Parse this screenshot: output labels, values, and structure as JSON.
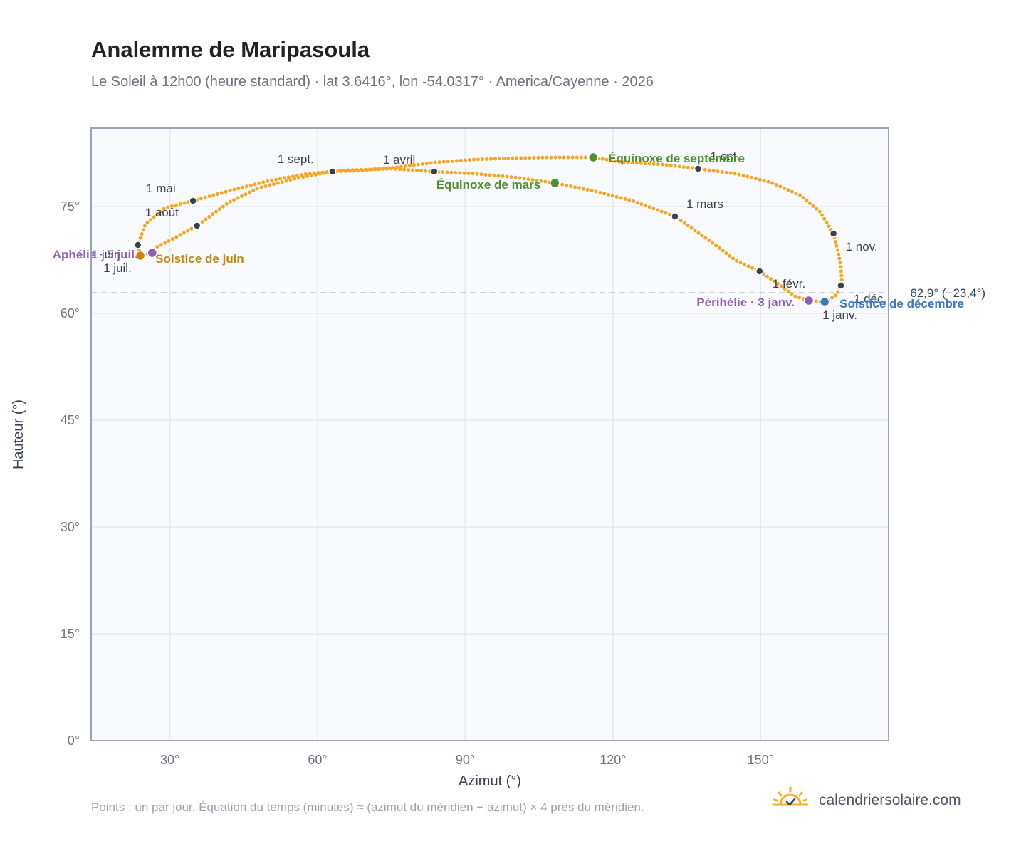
{
  "title": "Analemme de Maripasoula",
  "subtitle": "Le Soleil à 12h00 (heure standard) · lat 3.6416°, lon -54.0317° · America/Cayenne · 2026",
  "footnote": "Points : un par jour. Équation du temps (minutes) ≈ (azimut du méridien − azimut) × 4 près du méridien.",
  "brand": {
    "name": "calendriersolaire.com",
    "icon": "sun-check-icon"
  },
  "colors": {
    "curve": "#f5a623",
    "month_point": "#374151",
    "equinox": "#4f8f2f",
    "solstice_june": "#c8860d",
    "solstice_december": "#3a78c2",
    "apsis": "#8e5fb5",
    "reference_line": "#c0c6cf",
    "plot_bg": "#f8fafd",
    "plot_border": "#9aa5b5",
    "grid": "#e5e9ef"
  },
  "chart_data": {
    "type": "scatter",
    "xlabel": "Azimut (°)",
    "ylabel": "Hauteur (°)",
    "xlim": [
      14,
      176
    ],
    "ylim": [
      0,
      86
    ],
    "xticks": [
      30,
      60,
      90,
      120,
      150
    ],
    "xtick_labels": [
      "30°",
      "60°",
      "90°",
      "120°",
      "150°"
    ],
    "yticks": [
      0,
      15,
      30,
      45,
      60,
      75
    ],
    "ytick_labels": [
      "0°",
      "15°",
      "30°",
      "45°",
      "60°",
      "75°"
    ],
    "grid": true,
    "reference_line": {
      "y": 62.9,
      "label": "62,9° (−23,4°)"
    },
    "path": [
      [
        163.0,
        61.6
      ],
      [
        165.5,
        62.6
      ],
      [
        166.5,
        64.5
      ],
      [
        166.3,
        66.5
      ],
      [
        165.8,
        68.5
      ],
      [
        164.8,
        71.2
      ],
      [
        162.0,
        74.3
      ],
      [
        158.0,
        76.6
      ],
      [
        152.0,
        78.4
      ],
      [
        145.0,
        79.6
      ],
      [
        137.3,
        80.3
      ],
      [
        130.0,
        80.9
      ],
      [
        122.0,
        81.2
      ],
      [
        116.0,
        81.9
      ],
      [
        108.0,
        81.9
      ],
      [
        100.0,
        81.8
      ],
      [
        92.0,
        81.6
      ],
      [
        84.0,
        81.2
      ],
      [
        76.0,
        80.5
      ],
      [
        68.0,
        80.0
      ],
      [
        63.0,
        79.9
      ],
      [
        56.0,
        79.0
      ],
      [
        48.0,
        77.6
      ],
      [
        42.0,
        75.6
      ],
      [
        35.5,
        72.3
      ],
      [
        31.0,
        70.6
      ],
      [
        27.0,
        69.2
      ],
      [
        26.4,
        68.5
      ],
      [
        24.0,
        68.1
      ],
      [
        23.5,
        69.6
      ],
      [
        25.0,
        72.5
      ],
      [
        29.0,
        74.8
      ],
      [
        34.7,
        75.8
      ],
      [
        42.0,
        77.2
      ],
      [
        50.0,
        78.6
      ],
      [
        58.0,
        79.6
      ],
      [
        66.0,
        80.1
      ],
      [
        75.0,
        80.3
      ],
      [
        83.7,
        79.9
      ],
      [
        92.0,
        79.6
      ],
      [
        100.0,
        79.1
      ],
      [
        108.2,
        78.3
      ],
      [
        116.0,
        77.2
      ],
      [
        124.0,
        75.8
      ],
      [
        132.6,
        73.6
      ],
      [
        140.0,
        70.0
      ],
      [
        145.0,
        67.4
      ],
      [
        149.8,
        65.9
      ],
      [
        154.0,
        63.9
      ],
      [
        157.0,
        62.4
      ],
      [
        159.8,
        61.8
      ],
      [
        163.0,
        61.6
      ]
    ],
    "month_points": [
      {
        "label": "1 janv.",
        "x": 163.0,
        "y": 61.6
      },
      {
        "label": "1 févr.",
        "x": 149.8,
        "y": 65.9
      },
      {
        "label": "1 mars",
        "x": 132.6,
        "y": 73.6
      },
      {
        "label": "1 avril",
        "x": 83.7,
        "y": 79.9
      },
      {
        "label": "1 mai",
        "x": 34.7,
        "y": 75.8
      },
      {
        "label": "1 juin",
        "x": 23.5,
        "y": 69.6
      },
      {
        "label": "1 juil.",
        "x": 24.0,
        "y": 68.1
      },
      {
        "label": "1 août",
        "x": 35.5,
        "y": 72.3
      },
      {
        "label": "1 sept.",
        "x": 63.0,
        "y": 79.9
      },
      {
        "label": "1 oct.",
        "x": 137.3,
        "y": 80.3
      },
      {
        "label": "1 nov.",
        "x": 164.8,
        "y": 71.2
      },
      {
        "label": "1 déc.",
        "x": 166.3,
        "y": 63.9
      }
    ],
    "events": [
      {
        "label": "Équinoxe de mars",
        "x": 108.2,
        "y": 78.3,
        "kind": "equinox"
      },
      {
        "label": "Solstice de juin",
        "x": 24.0,
        "y": 68.1,
        "kind": "solstice_june"
      },
      {
        "label": "Équinoxe de septembre",
        "x": 116.0,
        "y": 81.9,
        "kind": "equinox"
      },
      {
        "label": "Solstice de décembre",
        "x": 163.0,
        "y": 61.6,
        "kind": "solstice_december"
      },
      {
        "label": "Périhélie · 3 janv.",
        "x": 159.8,
        "y": 61.8,
        "kind": "apsis"
      },
      {
        "label": "Aphélie · 5 juil.",
        "x": 26.4,
        "y": 68.5,
        "kind": "apsis"
      }
    ]
  }
}
